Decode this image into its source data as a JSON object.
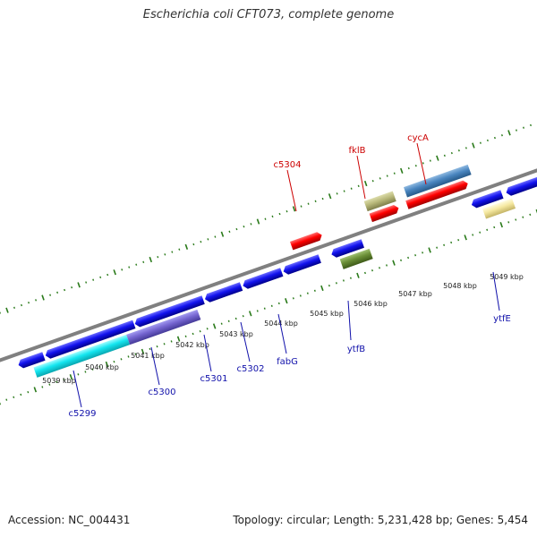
{
  "title": "Escherichia coli CFT073, complete genome",
  "footer": {
    "accession": "Accession: NC_004431",
    "stats": "Topology: circular; Length: 5,231,428 bp; Genes: 5,454"
  },
  "colors": {
    "backbone": "#808080",
    "ticks": "#2a7a1a",
    "top_labels": "#cc0000",
    "bottom_labels": "#1010aa",
    "scale_labels": "#222222"
  },
  "scale_labels": [
    "5039 kbp",
    "5040 kbp",
    "5041 kbp",
    "5042 kbp",
    "5043 kbp",
    "5044 kbp",
    "5045 kbp",
    "5046 kbp",
    "5047 kbp",
    "5048 kbp",
    "5049 kbp"
  ],
  "gene_labels_top": [
    "c5304",
    "fklB",
    "cycA"
  ],
  "gene_labels_bottom": [
    "c5299",
    "c5300",
    "c5301",
    "c5302",
    "fabG",
    "ytfB",
    "ytfE"
  ]
}
